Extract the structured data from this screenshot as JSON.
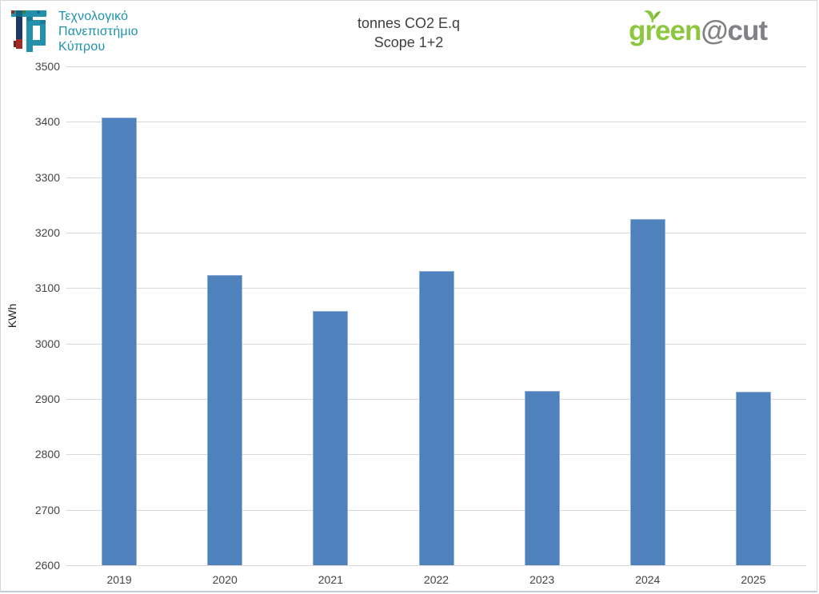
{
  "header": {
    "university": {
      "line1": "Τεχνολογικό",
      "line2": "Πανεπιστήμιο",
      "line3": "Κύπρου"
    },
    "brand": {
      "green": "green",
      "cut": "@cut"
    }
  },
  "chart_data": {
    "type": "bar",
    "title": "tonnes CO2 E.q",
    "subtitle": "Scope 1+2",
    "ylabel": "KWh",
    "xlabel": "",
    "categories": [
      "2019",
      "2020",
      "2021",
      "2022",
      "2023",
      "2024",
      "2025"
    ],
    "values": [
      3407,
      3124,
      3059,
      3131,
      2914,
      3225,
      2913
    ],
    "ylim": [
      2600,
      3500
    ],
    "ytick_step": 100,
    "yticks": [
      3500,
      3400,
      3300,
      3200,
      3100,
      3000,
      2900,
      2800,
      2700,
      2600
    ],
    "grid": true,
    "legend": false,
    "bar_color": "#4F81BD"
  },
  "colors": {
    "bar": "#4F81BD",
    "bar_border": "#93B1D7",
    "grid": "#D9D9D9",
    "axis_text": "#444444",
    "title_text": "#3F3F3F",
    "university_teal": "#1E93AE",
    "brand_green": "#8DC63F",
    "brand_gray": "#808285"
  }
}
